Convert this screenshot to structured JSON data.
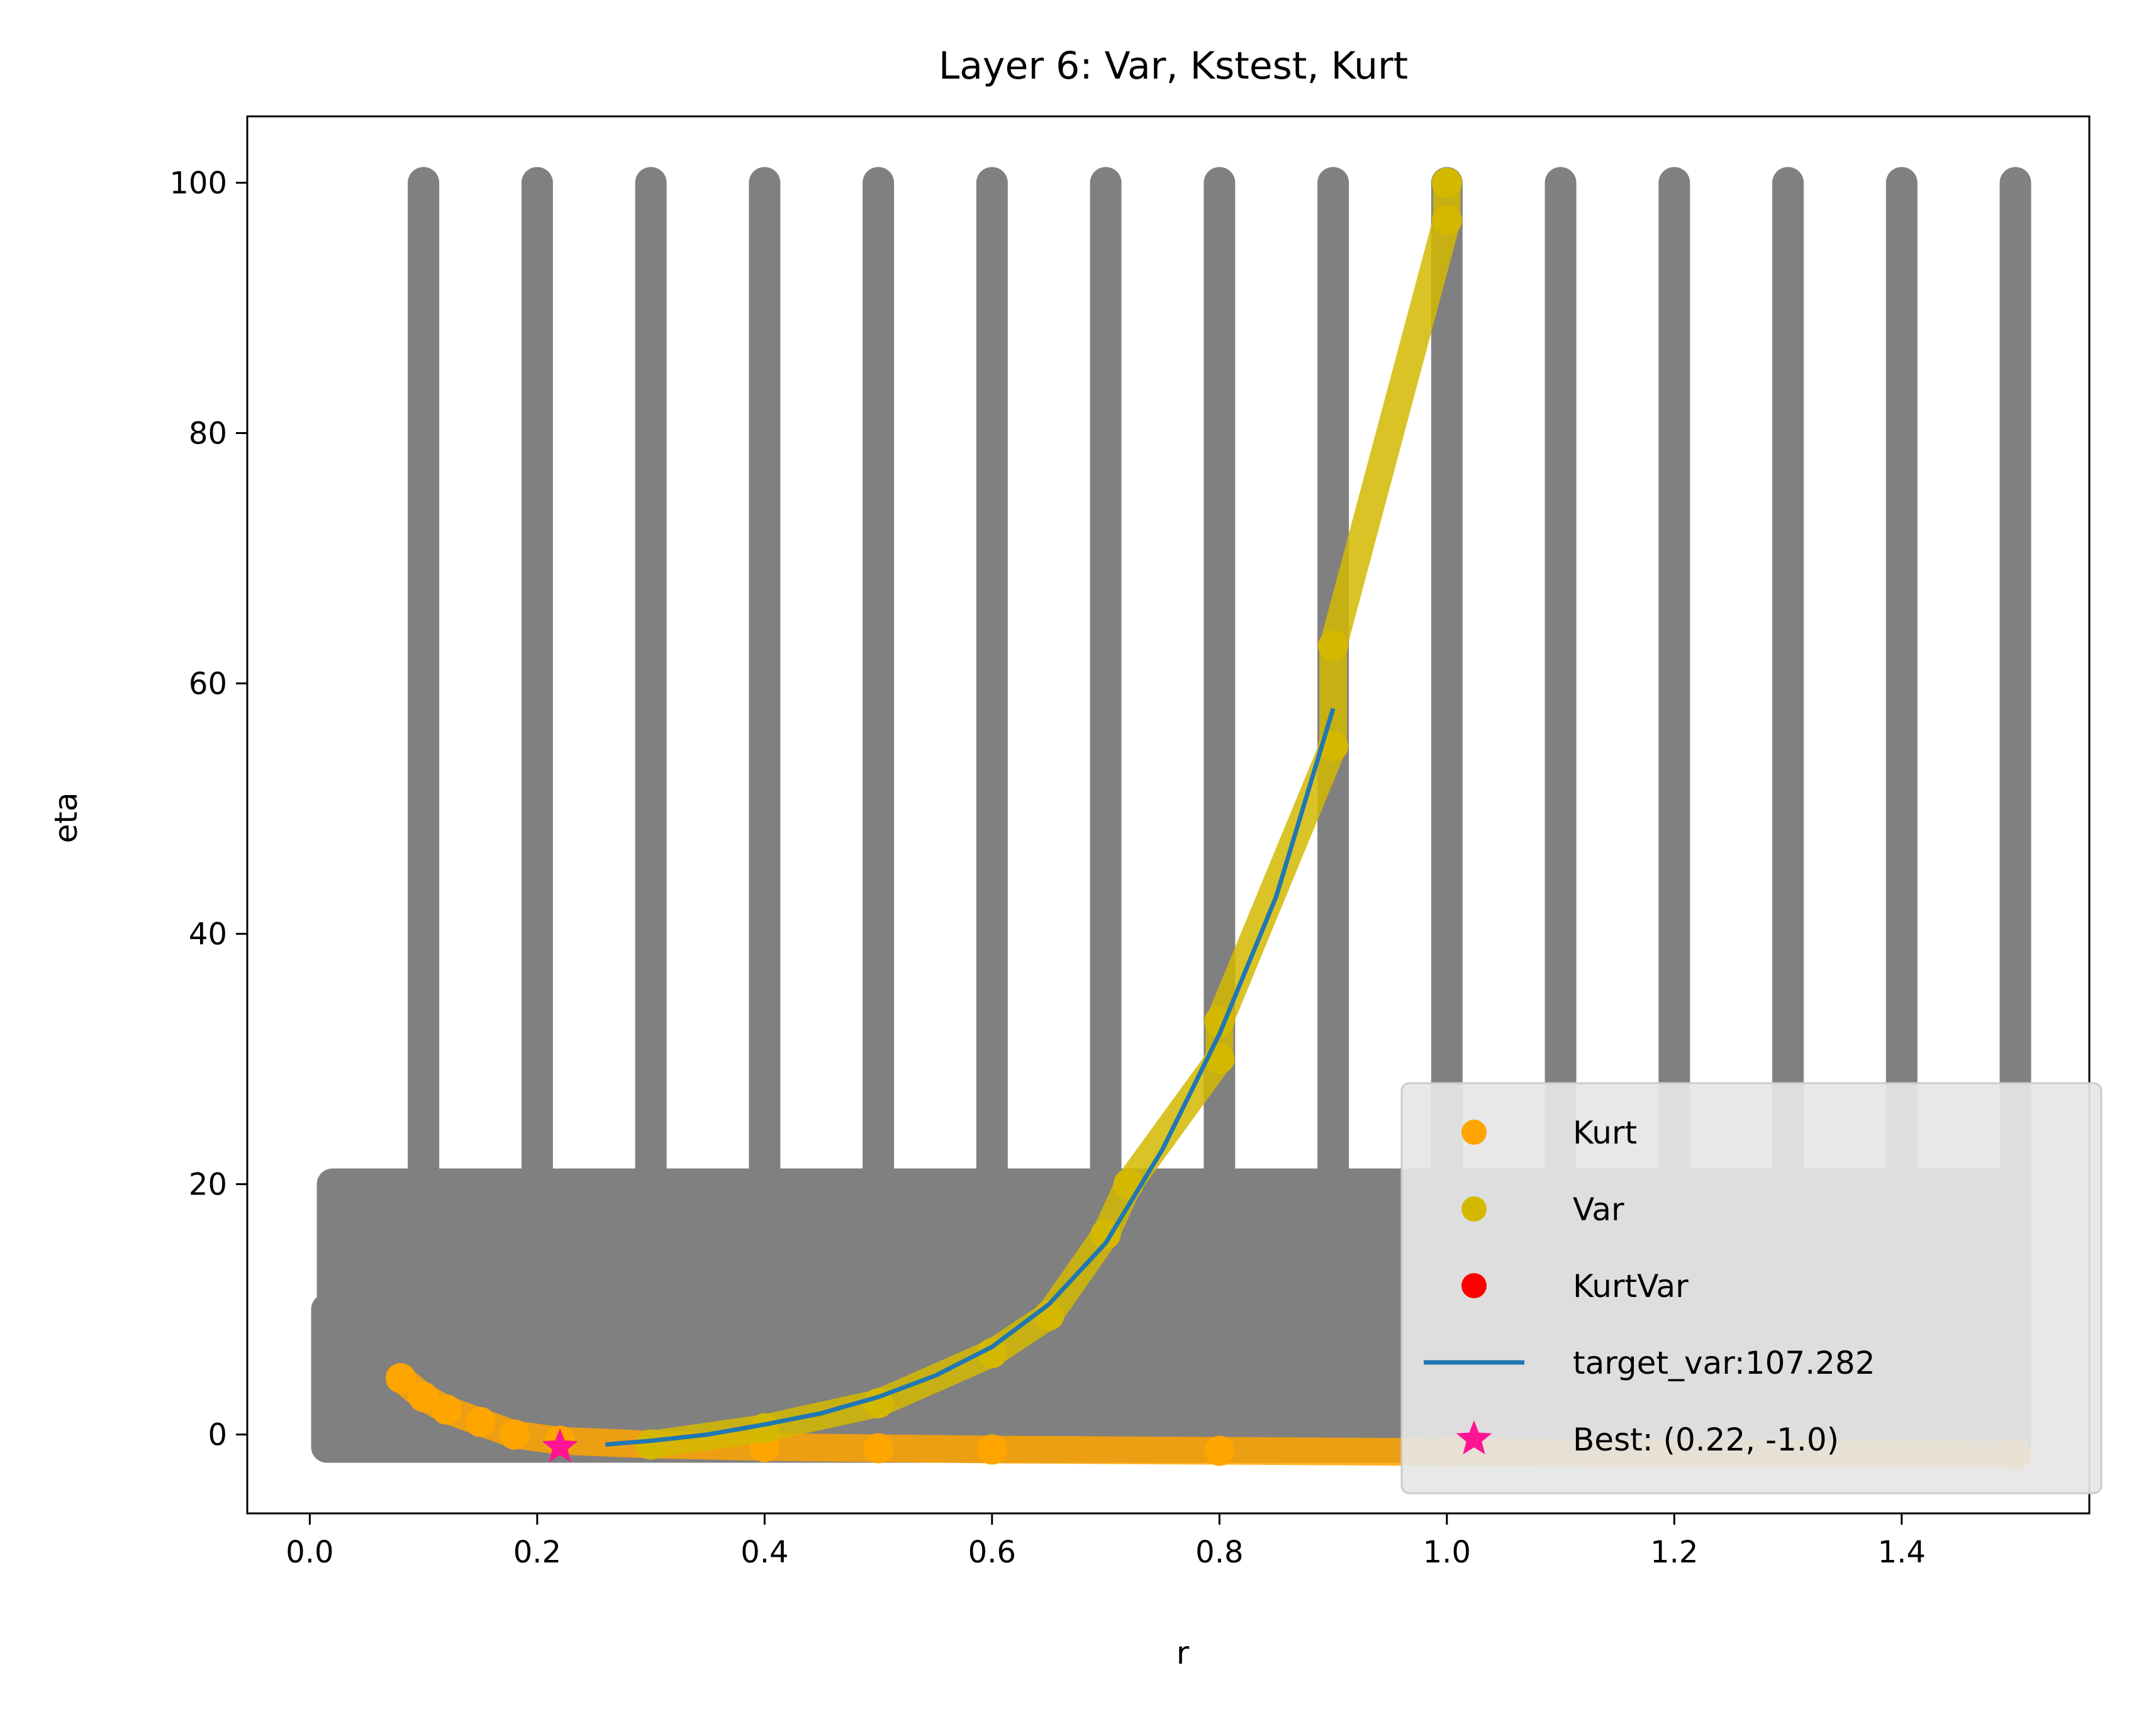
{
  "chart_data": {
    "type": "scatter",
    "title": "Layer 6: Var, Kstest, Kurt",
    "xlabel": "r",
    "ylabel": "eta",
    "xlim": [
      -0.055,
      1.565
    ],
    "ylim": [
      -6.3,
      105.3
    ],
    "xticks": [
      0.0,
      0.2,
      0.4,
      0.6,
      0.8,
      1.0,
      1.2,
      1.4
    ],
    "xtick_labels": [
      "0.0",
      "0.2",
      "0.4",
      "0.6",
      "0.8",
      "1.0",
      "1.2",
      "1.4"
    ],
    "yticks": [
      0,
      20,
      40,
      60,
      80,
      100
    ],
    "ytick_labels": [
      "0",
      "20",
      "40",
      "60",
      "80",
      "100"
    ],
    "grid": false,
    "legend_position": "bottom-right",
    "background_grid": {
      "color": "#808080",
      "coarse_r_columns": [
        0.1,
        0.2,
        0.3,
        0.4,
        0.5,
        0.6,
        0.7,
        0.8,
        0.9,
        1.0,
        1.1,
        1.2,
        1.3,
        1.4,
        1.5
      ],
      "coarse_eta_range": [
        -1,
        100
      ],
      "fine_block": {
        "r_range": [
          0.02,
          1.5
        ],
        "eta_range": [
          -1,
          20
        ]
      },
      "dense_block": {
        "r_range": [
          0.015,
          1.5
        ],
        "eta_range": [
          -1,
          10
        ]
      }
    },
    "series": [
      {
        "name": "Kurt",
        "color": "#FFA500",
        "marker": "circle",
        "points": [
          [
            0.08,
            4.5
          ],
          [
            0.1,
            3.0
          ],
          [
            0.12,
            2.0
          ],
          [
            0.15,
            1.0
          ],
          [
            0.18,
            0.0
          ],
          [
            0.22,
            -0.5
          ],
          [
            0.3,
            -0.8
          ],
          [
            0.4,
            -1.0
          ],
          [
            0.5,
            -1.1
          ],
          [
            0.6,
            -1.2
          ],
          [
            0.8,
            -1.3
          ],
          [
            1.0,
            -1.4
          ],
          [
            1.2,
            -1.5
          ],
          [
            1.5,
            -1.6
          ]
        ]
      },
      {
        "name": "Var",
        "color": "#D4B800",
        "marker": "circle",
        "points": [
          [
            0.3,
            -0.8
          ],
          [
            0.4,
            0.5
          ],
          [
            0.5,
            2.5
          ],
          [
            0.6,
            6.5
          ],
          [
            0.65,
            9.5
          ],
          [
            0.7,
            16.0
          ],
          [
            0.72,
            20.0
          ],
          [
            0.8,
            30.0
          ],
          [
            0.8,
            33.0
          ],
          [
            0.9,
            55.0
          ],
          [
            0.9,
            63.0
          ],
          [
            1.0,
            97.0
          ],
          [
            1.0,
            100.0
          ]
        ]
      },
      {
        "name": "KurtVar",
        "color": "#FF0000",
        "marker": "circle",
        "points": []
      },
      {
        "name": "target_var:107.282",
        "color": "#1F77B4",
        "marker": "line",
        "points": [
          [
            0.26,
            -0.8
          ],
          [
            0.3,
            -0.5
          ],
          [
            0.35,
            0.0
          ],
          [
            0.4,
            0.8
          ],
          [
            0.45,
            1.7
          ],
          [
            0.5,
            3.0
          ],
          [
            0.55,
            4.7
          ],
          [
            0.6,
            7.0
          ],
          [
            0.65,
            10.4
          ],
          [
            0.7,
            15.3
          ],
          [
            0.75,
            22.8
          ],
          [
            0.8,
            32.0
          ],
          [
            0.85,
            43.0
          ],
          [
            0.9,
            58.0
          ]
        ]
      },
      {
        "name": "Best: (0.22, -1.0)",
        "color": "#FF1493",
        "marker": "star",
        "points": [
          [
            0.22,
            -1.0
          ]
        ]
      }
    ]
  }
}
